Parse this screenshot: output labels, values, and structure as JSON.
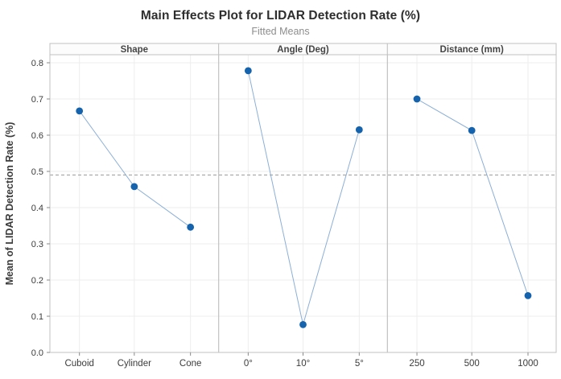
{
  "chart_data": {
    "type": "line",
    "title": "Main Effects Plot for LIDAR Detection Rate (%)",
    "subtitle": "Fitted Means",
    "ylabel": "Mean of LIDAR Detection Rate (%)",
    "ylim": [
      0.0,
      0.822
    ],
    "yticks": [
      0.0,
      0.1,
      0.2,
      0.3,
      0.4,
      0.5,
      0.6,
      0.7,
      0.8
    ],
    "grid": true,
    "legend": "none",
    "reference_line_mean": 0.49,
    "panels": [
      {
        "label": "Shape",
        "categories": [
          "Cuboid",
          "Cylinder",
          "Cone"
        ],
        "values": [
          0.667,
          0.458,
          0.346
        ]
      },
      {
        "label": "Angle (Deg)",
        "categories": [
          "0°",
          "10°",
          "5°"
        ],
        "values": [
          0.778,
          0.077,
          0.615
        ]
      },
      {
        "label": "Distance (mm)",
        "categories": [
          "250",
          "500",
          "1000"
        ],
        "values": [
          0.7,
          0.613,
          0.157
        ]
      }
    ],
    "colors": {
      "marker": "#1563ad",
      "series_line": "#8bafd7",
      "reference_line": "#9c9c9c",
      "grid_line": "#ededed",
      "panel_border": "#c2c2c2",
      "strip_background": "#fcfcfc",
      "tick_text": "#3b3b3b",
      "strip_text": "#454545",
      "title_text": "#2e2e2e",
      "subtitle_text": "#8d8d8d"
    }
  }
}
